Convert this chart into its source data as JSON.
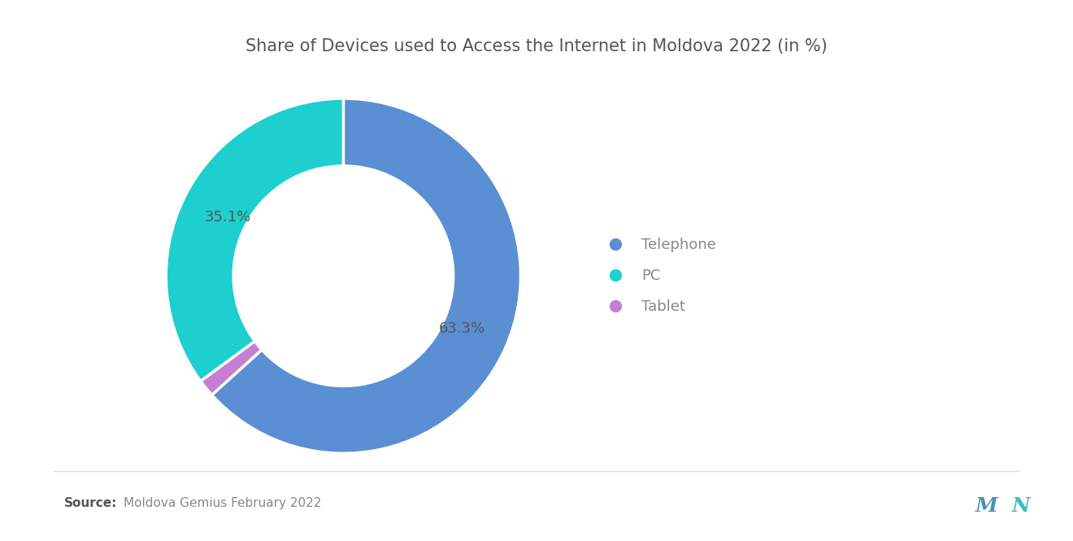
{
  "title": "Share of Devices used to Access the Internet in Moldova 2022 (in %)",
  "labels": [
    "Telephone",
    "PC",
    "Tablet"
  ],
  "values": [
    63.3,
    35.1,
    1.6
  ],
  "colors": [
    "#5b8fd4",
    "#1ecfcf",
    "#c47fd4"
  ],
  "legend_labels": [
    "Telephone",
    "PC",
    "Tablet"
  ],
  "source_bold": "Source:",
  "source_text": "Moldova Gemius February 2022",
  "background_color": "#ffffff",
  "title_fontsize": 15,
  "label_fontsize": 13,
  "legend_fontsize": 13,
  "donut_width": 0.38,
  "startangle": 90
}
